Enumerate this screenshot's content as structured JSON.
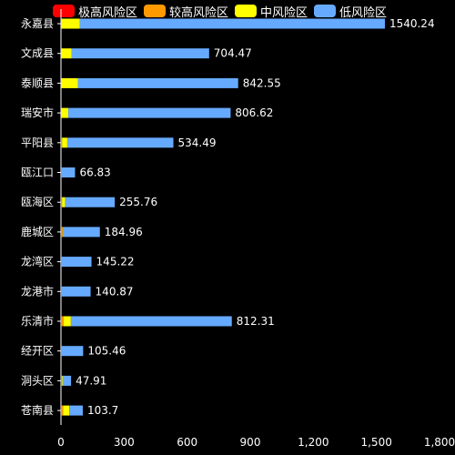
{
  "chart_data": {
    "type": "bar",
    "orientation": "horizontal",
    "stacked": true,
    "legend": "top",
    "grid": false,
    "xlim": [
      0,
      1800
    ],
    "x_ticks": [
      "0",
      "300",
      "600",
      "900",
      "1,200",
      "1,500",
      "1,800"
    ],
    "x_tick_values": [
      0,
      300,
      600,
      900,
      1200,
      1500,
      1800
    ],
    "categories": [
      "永嘉县",
      "文成县",
      "泰顺县",
      "瑞安市",
      "平阳县",
      "瓯江口",
      "瓯海区",
      "鹿城区",
      "龙湾区",
      "龙港市",
      "乐清市",
      "经开区",
      "洞头区",
      "苍南县"
    ],
    "series": [
      {
        "name": "极高风险区",
        "color": "#ff0000",
        "values": [
          0,
          0,
          0,
          0,
          0,
          0,
          0,
          0,
          0,
          0,
          0,
          0,
          0,
          0
        ]
      },
      {
        "name": "较高风险区",
        "color": "#ff9900",
        "values": [
          0,
          0,
          0,
          0,
          5,
          0,
          5,
          8,
          0,
          0,
          12,
          0,
          4,
          10
        ]
      },
      {
        "name": "中风险区",
        "color": "#ffff00",
        "values": [
          90,
          50,
          80,
          35,
          25,
          0,
          15,
          2,
          0,
          0,
          35,
          0,
          4,
          30
        ]
      },
      {
        "name": "低风险区",
        "color": "#66aaff",
        "values": [
          1450.24,
          654.47,
          762.55,
          771.62,
          504.49,
          66.83,
          235.76,
          174.96,
          145.22,
          140.87,
          765.31,
          105.46,
          39.91,
          63.7
        ]
      }
    ],
    "totals": [
      "1540.24",
      "704.47",
      "842.55",
      "806.62",
      "534.49",
      "66.83",
      "255.76",
      "184.96",
      "145.22",
      "140.87",
      "812.31",
      "105.46",
      "47.91",
      "103.7"
    ]
  }
}
